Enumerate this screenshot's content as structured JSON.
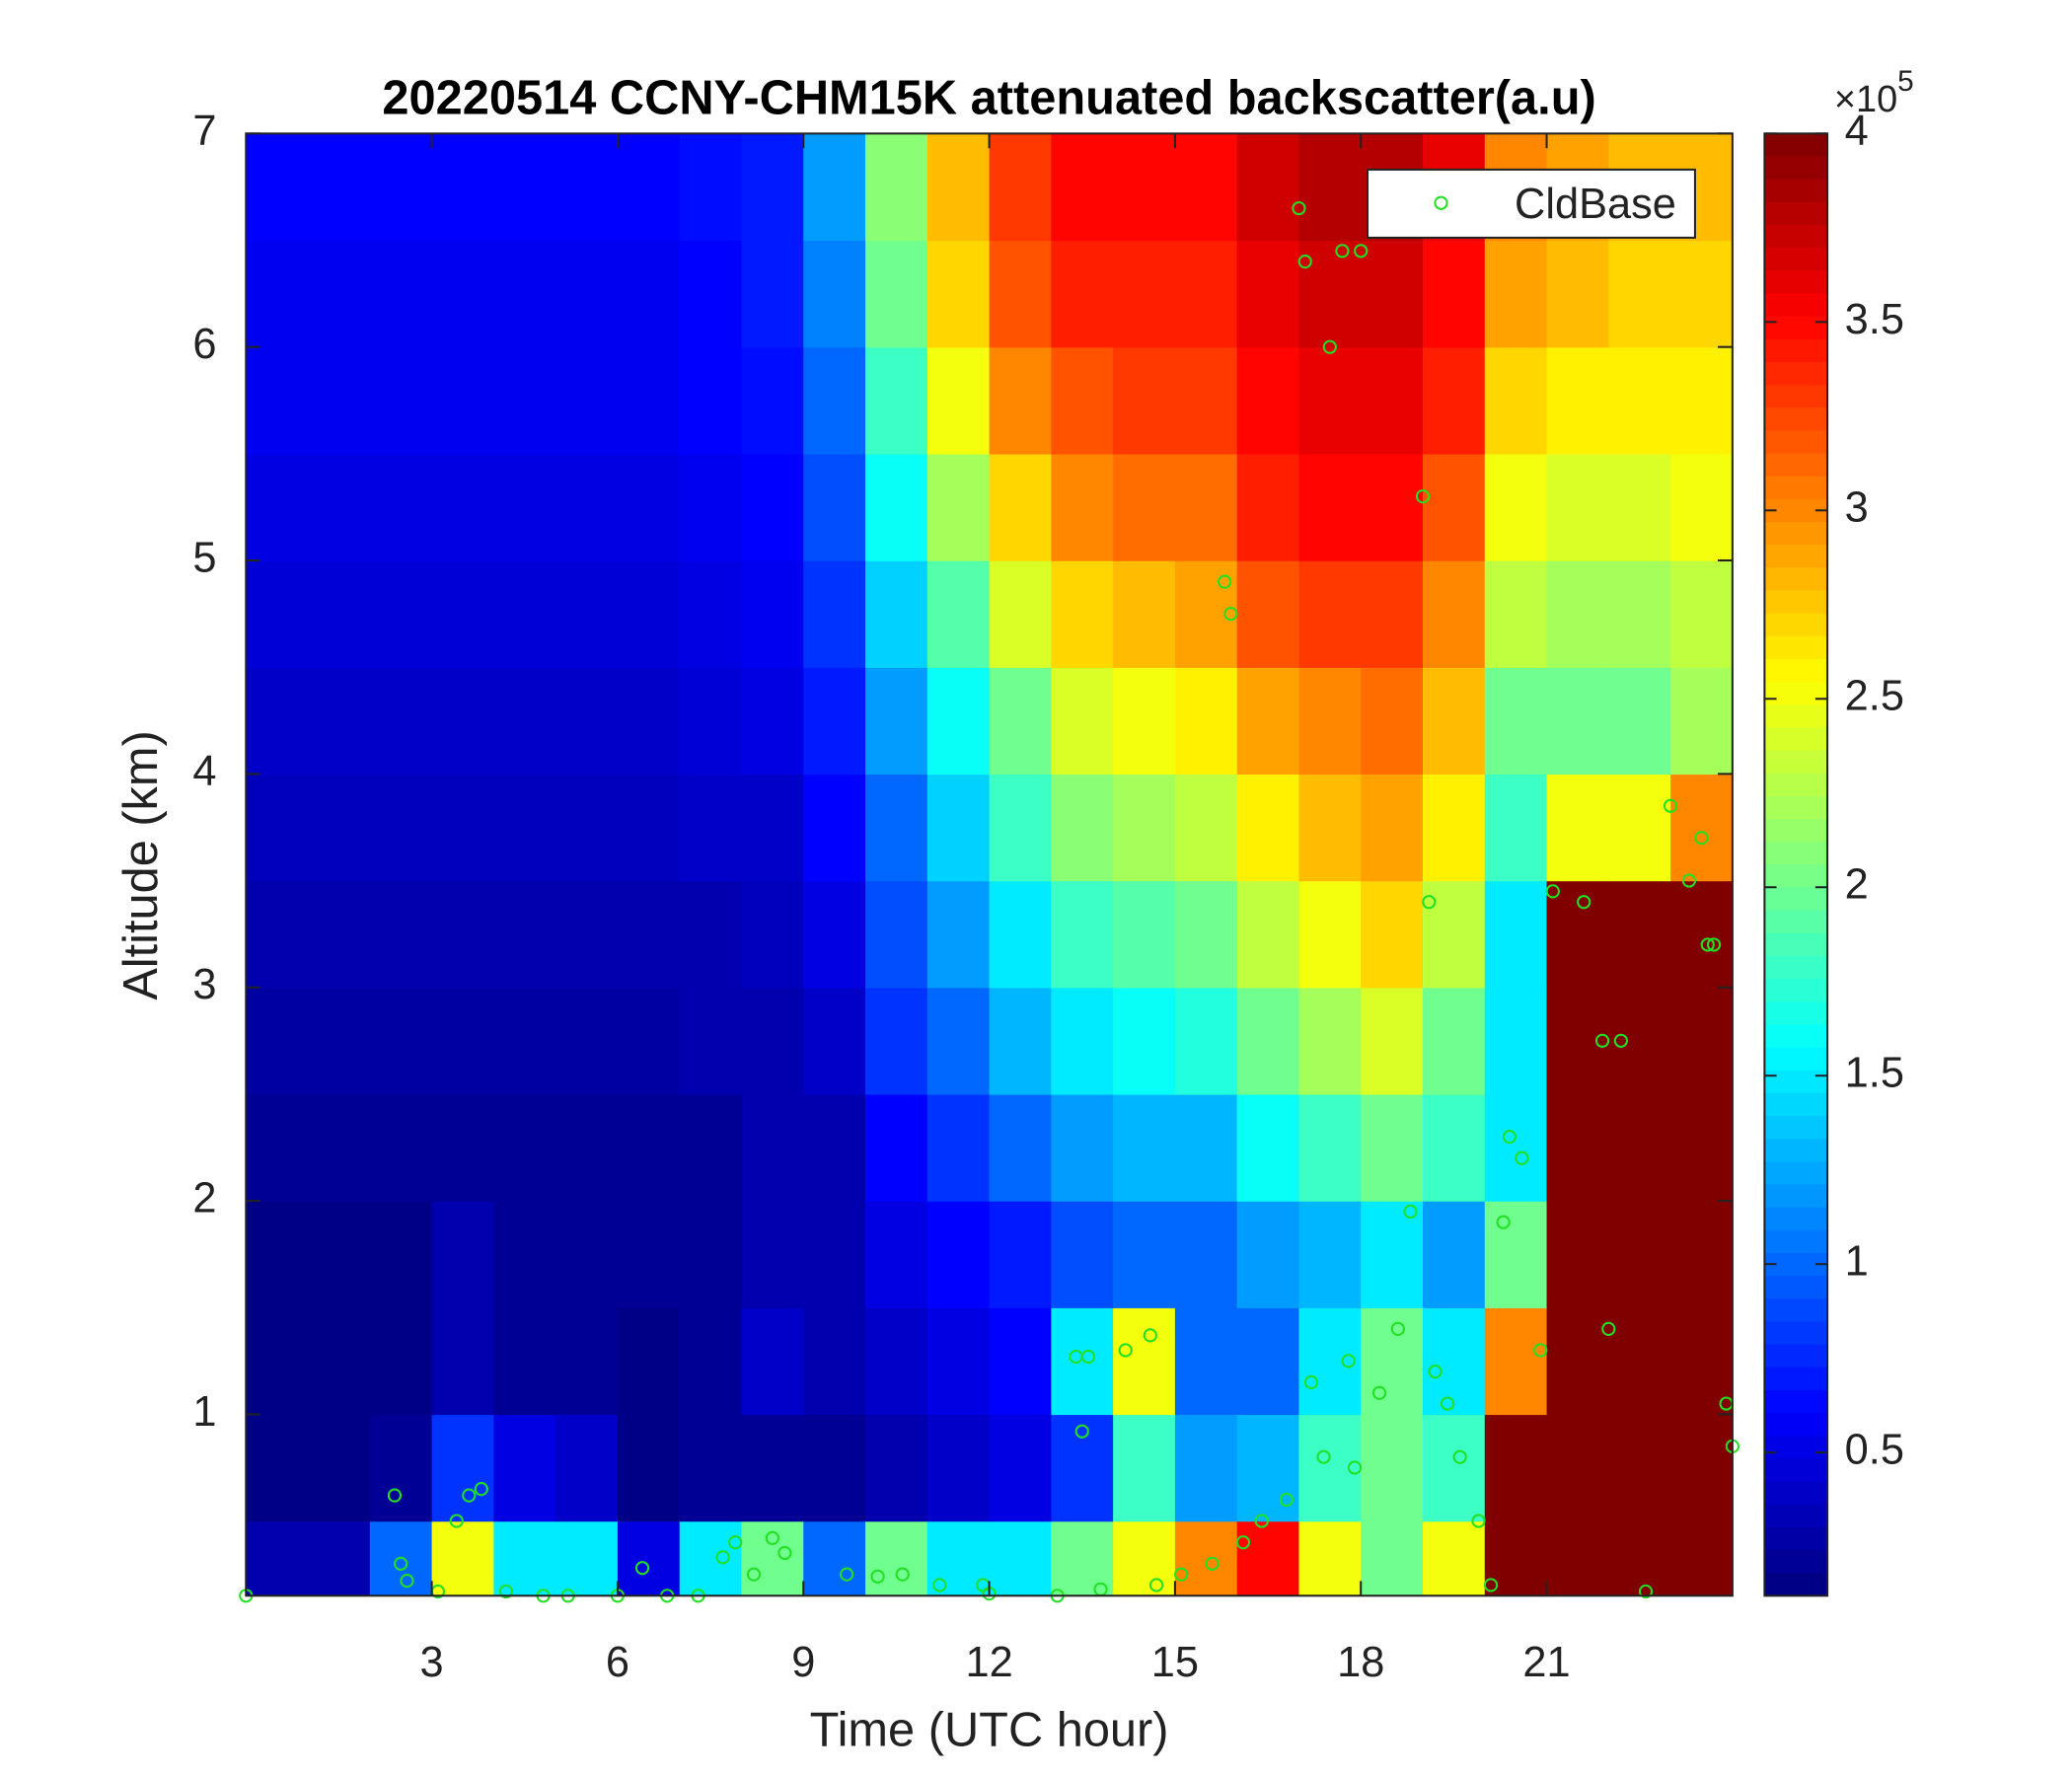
{
  "chart_data": {
    "type": "heatmap_scatter",
    "title": "20220514 CCNY-CHM15K attenuated backscatter(a.u)",
    "x_label": "Time (UTC hour)",
    "y_label": "Altitude (km)",
    "xlim": [
      0,
      24
    ],
    "xticks": [
      3,
      6,
      9,
      12,
      15,
      18,
      21
    ],
    "ylim": [
      0.15,
      7
    ],
    "yticks": [
      1,
      2,
      3,
      4,
      5,
      6,
      7
    ],
    "time_bins": [
      0,
      1,
      2,
      3,
      4,
      5,
      6,
      7,
      8,
      9,
      10,
      11,
      12,
      13,
      14,
      15,
      16,
      17,
      18,
      19,
      20,
      21,
      22,
      23,
      24
    ],
    "alt_bins": [
      0.15,
      0.5,
      1,
      1.5,
      2,
      2.5,
      3,
      3.5,
      4,
      4.5,
      5,
      5.5,
      6,
      6.5,
      7
    ],
    "colormap": "jet",
    "clim": [
      0.12,
      4
    ],
    "cticks": [
      0.5,
      1,
      1.5,
      2,
      2.5,
      3,
      3.5,
      4
    ],
    "colorbar_multiplier": "×10",
    "colorbar_exponent": 5,
    "backscatter": [
      [
        0.3,
        0.3,
        1.0,
        2.5,
        1.5,
        1.5,
        0.5,
        1.5,
        2.0,
        1.0,
        2.0,
        1.5,
        1.5,
        2.0,
        2.5,
        3.0,
        3.5,
        2.5,
        2.0,
        2.5,
        4,
        4,
        4,
        4
      ],
      [
        0.15,
        0.15,
        0.2,
        0.8,
        0.5,
        0.4,
        0.15,
        0.2,
        0.2,
        0.2,
        0.3,
        0.4,
        0.5,
        0.8,
        1.8,
        1.2,
        1.3,
        1.8,
        2.0,
        1.8,
        4,
        4,
        4,
        4
      ],
      [
        0.15,
        0.15,
        0.15,
        0.3,
        0.2,
        0.2,
        0.15,
        0.2,
        0.4,
        0.3,
        0.4,
        0.5,
        0.6,
        1.5,
        2.5,
        1.0,
        1.0,
        1.5,
        2.0,
        1.5,
        3.0,
        4,
        4,
        4
      ],
      [
        0.15,
        0.15,
        0.15,
        0.3,
        0.2,
        0.2,
        0.2,
        0.2,
        0.3,
        0.3,
        0.5,
        0.6,
        0.7,
        0.9,
        1.0,
        1.0,
        1.2,
        1.3,
        1.5,
        1.2,
        2.0,
        4,
        4,
        4
      ],
      [
        0.2,
        0.2,
        0.2,
        0.2,
        0.2,
        0.2,
        0.2,
        0.2,
        0.3,
        0.3,
        0.6,
        0.8,
        1.0,
        1.2,
        1.3,
        1.3,
        1.6,
        1.8,
        2.0,
        1.8,
        1.5,
        4,
        4,
        4
      ],
      [
        0.25,
        0.25,
        0.25,
        0.25,
        0.25,
        0.25,
        0.25,
        0.3,
        0.3,
        0.4,
        0.8,
        1.0,
        1.3,
        1.5,
        1.6,
        1.7,
        2.0,
        2.2,
        2.4,
        2.0,
        1.5,
        4,
        4,
        4
      ],
      [
        0.3,
        0.3,
        0.3,
        0.3,
        0.3,
        0.3,
        0.3,
        0.3,
        0.35,
        0.5,
        0.9,
        1.2,
        1.5,
        1.8,
        1.9,
        2.0,
        2.3,
        2.5,
        2.7,
        2.3,
        1.5,
        4,
        4,
        4
      ],
      [
        0.35,
        0.35,
        0.35,
        0.35,
        0.35,
        0.35,
        0.35,
        0.4,
        0.4,
        0.6,
        1.0,
        1.4,
        1.8,
        2.1,
        2.2,
        2.3,
        2.6,
        2.8,
        2.9,
        2.6,
        1.8,
        2.5,
        2.5,
        3.0
      ],
      [
        0.4,
        0.4,
        0.4,
        0.4,
        0.4,
        0.4,
        0.4,
        0.45,
        0.5,
        0.7,
        1.2,
        1.6,
        2.0,
        2.4,
        2.5,
        2.6,
        2.9,
        3.0,
        3.1,
        2.8,
        2.0,
        2.0,
        2.0,
        2.2
      ],
      [
        0.45,
        0.45,
        0.45,
        0.45,
        0.45,
        0.45,
        0.45,
        0.5,
        0.55,
        0.8,
        1.4,
        1.9,
        2.4,
        2.7,
        2.8,
        2.9,
        3.2,
        3.3,
        3.3,
        3.0,
        2.3,
        2.2,
        2.2,
        2.3
      ],
      [
        0.5,
        0.5,
        0.5,
        0.5,
        0.5,
        0.5,
        0.5,
        0.55,
        0.6,
        0.9,
        1.6,
        2.2,
        2.7,
        3.0,
        3.1,
        3.1,
        3.4,
        3.5,
        3.5,
        3.2,
        2.5,
        2.4,
        2.4,
        2.5
      ],
      [
        0.55,
        0.55,
        0.55,
        0.55,
        0.55,
        0.55,
        0.55,
        0.6,
        0.65,
        1.0,
        1.8,
        2.5,
        3.0,
        3.2,
        3.3,
        3.3,
        3.5,
        3.6,
        3.6,
        3.4,
        2.7,
        2.6,
        2.6,
        2.6
      ],
      [
        0.55,
        0.55,
        0.55,
        0.55,
        0.55,
        0.55,
        0.55,
        0.6,
        0.7,
        1.1,
        2.0,
        2.7,
        3.2,
        3.4,
        3.4,
        3.4,
        3.6,
        3.7,
        3.7,
        3.5,
        2.9,
        2.8,
        2.7,
        2.7
      ],
      [
        0.6,
        0.6,
        0.6,
        0.6,
        0.6,
        0.6,
        0.6,
        0.65,
        0.7,
        1.2,
        2.1,
        2.8,
        3.3,
        3.5,
        3.5,
        3.5,
        3.7,
        3.8,
        3.8,
        3.6,
        3.0,
        2.9,
        2.8,
        2.8
      ]
    ],
    "series": [
      {
        "name": "CldBase",
        "color": "#22e022",
        "x": [
          0.0,
          2.4,
          2.5,
          2.6,
          3.1,
          3.4,
          3.6,
          3.8,
          4.2,
          4.8,
          5.2,
          6.0,
          6.4,
          6.8,
          7.3,
          7.7,
          7.9,
          8.2,
          8.5,
          8.7,
          9.7,
          10.2,
          10.6,
          11.2,
          11.9,
          12.0,
          13.1,
          13.4,
          13.5,
          13.6,
          13.8,
          14.2,
          14.6,
          14.7,
          15.1,
          15.6,
          15.8,
          15.9,
          16.1,
          16.4,
          16.8,
          17.0,
          17.1,
          17.2,
          17.4,
          17.5,
          17.7,
          17.8,
          17.9,
          18.0,
          18.3,
          18.6,
          18.8,
          19.0,
          19.1,
          19.2,
          19.4,
          19.6,
          19.9,
          20.1,
          20.3,
          20.4,
          20.6,
          20.9,
          21.1,
          21.6,
          21.9,
          22.0,
          22.2,
          22.6,
          23.0,
          23.3,
          23.5,
          23.6,
          23.7,
          23.9,
          24.0
        ],
        "values": [
          0.15,
          0.62,
          0.3,
          0.22,
          0.17,
          0.5,
          0.62,
          0.65,
          0.17,
          0.15,
          0.15,
          0.15,
          0.28,
          0.15,
          0.15,
          0.33,
          0.4,
          0.25,
          0.42,
          0.35,
          0.25,
          0.24,
          0.25,
          0.2,
          0.2,
          0.16,
          0.15,
          1.27,
          0.92,
          1.27,
          0.18,
          1.3,
          1.37,
          0.2,
          0.25,
          0.3,
          4.9,
          4.75,
          0.4,
          0.5,
          0.6,
          6.65,
          6.4,
          1.15,
          0.8,
          6.0,
          6.45,
          1.25,
          0.75,
          6.45,
          1.1,
          1.4,
          1.95,
          5.3,
          3.4,
          1.2,
          1.05,
          0.8,
          0.5,
          0.2,
          1.9,
          2.3,
          2.2,
          1.3,
          3.45,
          3.4,
          2.75,
          1.4,
          2.75,
          0.17,
          3.85,
          3.5,
          3.7,
          3.2,
          3.2,
          1.05,
          0.85
        ]
      }
    ],
    "legend": "upper right"
  }
}
